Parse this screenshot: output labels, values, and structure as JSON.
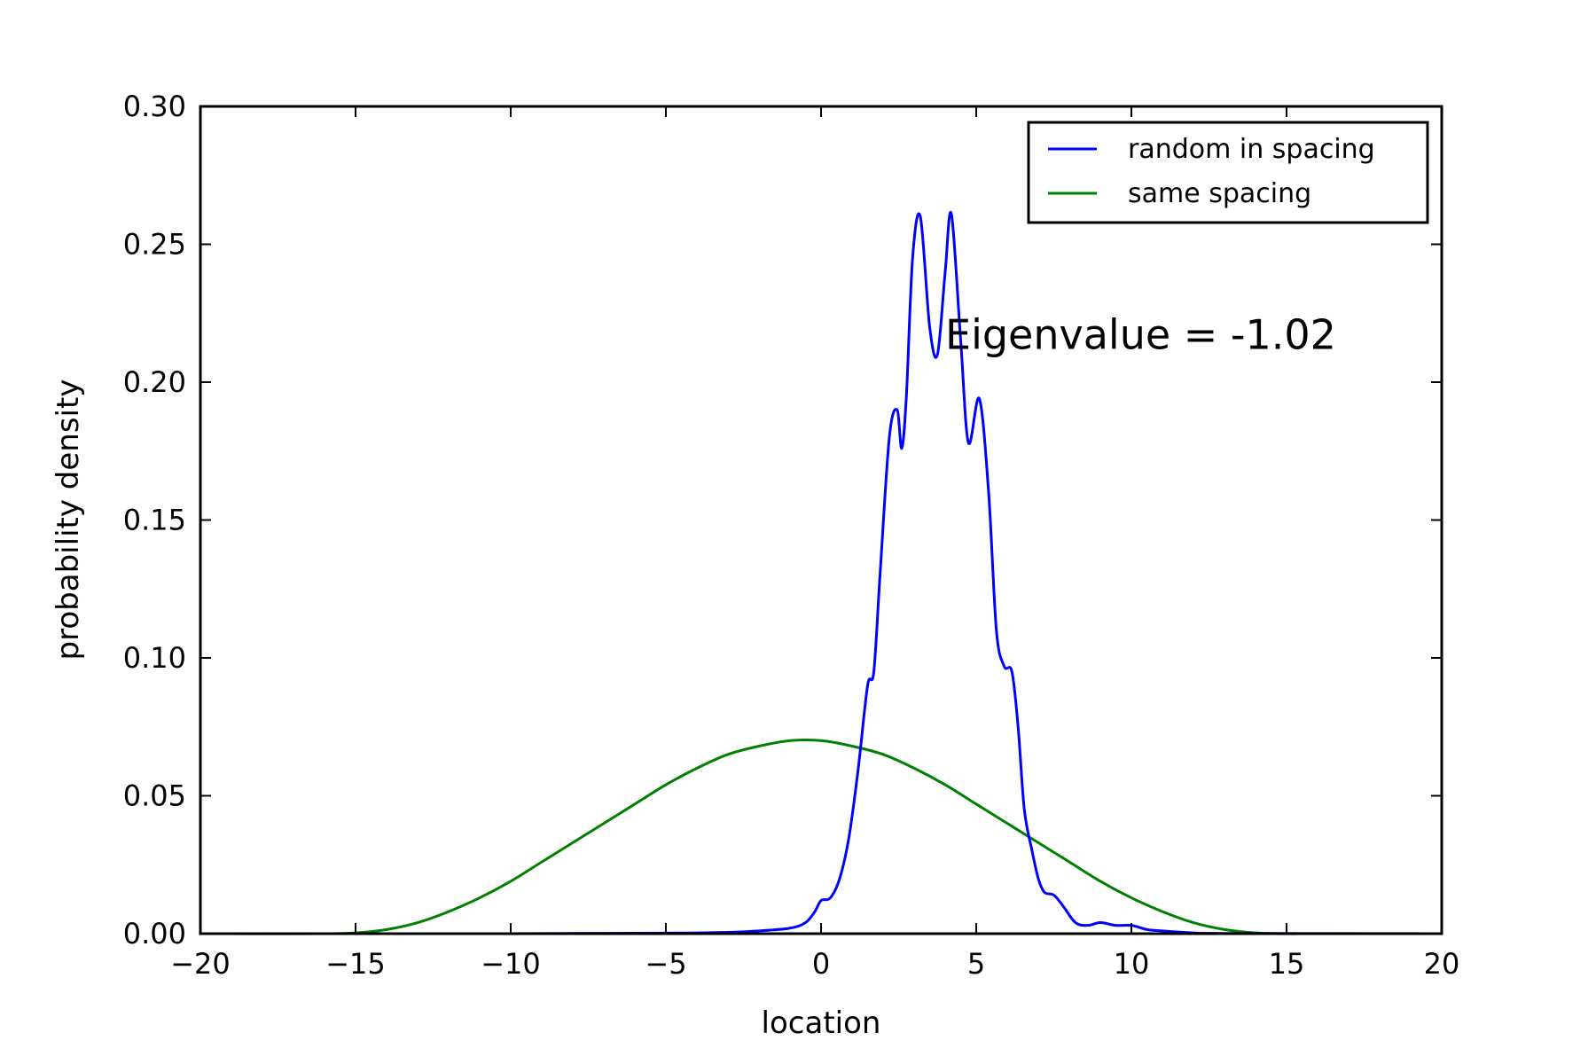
{
  "chart_data": {
    "type": "line",
    "title": "",
    "xlabel": "location",
    "ylabel": "probability density",
    "xlim": [
      -20,
      20
    ],
    "ylim": [
      0,
      0.3
    ],
    "xticks": [
      -20,
      -15,
      -10,
      -5,
      0,
      5,
      10,
      15,
      20
    ],
    "xtick_labels": [
      "−20",
      "−15",
      "−10",
      "−5",
      "0",
      "5",
      "10",
      "15",
      "20"
    ],
    "yticks": [
      0,
      0.05,
      0.1,
      0.15,
      0.2,
      0.25,
      0.3
    ],
    "ytick_labels": [
      "0.00",
      "0.05",
      "0.10",
      "0.15",
      "0.20",
      "0.25",
      "0.30"
    ],
    "grid": false,
    "legend_position": "top-right",
    "annotation": {
      "text": "Eigenvalue = -1.02",
      "x": 4.0,
      "y": 0.212
    },
    "series": [
      {
        "name": "random in spacing",
        "color": "#0000ff",
        "x": [
          -20,
          -10,
          -5,
          -3,
          -2,
          -1,
          -0.5,
          -0.2,
          0,
          0.3,
          0.6,
          0.9,
          1.2,
          1.5,
          1.7,
          1.9,
          2.2,
          2.45,
          2.6,
          2.75,
          2.95,
          3.2,
          3.5,
          3.75,
          4.0,
          4.2,
          4.5,
          4.75,
          5.1,
          5.4,
          5.65,
          5.9,
          6.15,
          6.35,
          6.55,
          6.8,
          7.0,
          7.2,
          7.5,
          7.8,
          8.2,
          8.6,
          9.0,
          9.5,
          10.0,
          10.5,
          11.0,
          12.0,
          13.0,
          20
        ],
        "y": [
          0.0,
          0.0,
          0.0002,
          0.0005,
          0.001,
          0.002,
          0.004,
          0.008,
          0.012,
          0.013,
          0.02,
          0.035,
          0.06,
          0.09,
          0.095,
          0.13,
          0.18,
          0.19,
          0.176,
          0.195,
          0.245,
          0.26,
          0.22,
          0.21,
          0.24,
          0.261,
          0.215,
          0.178,
          0.194,
          0.16,
          0.11,
          0.097,
          0.095,
          0.075,
          0.045,
          0.03,
          0.02,
          0.015,
          0.014,
          0.01,
          0.004,
          0.003,
          0.004,
          0.003,
          0.003,
          0.0015,
          0.001,
          0.0003,
          0.0001,
          0.0
        ]
      },
      {
        "name": "same spacing",
        "color": "#008000",
        "x": [
          -20,
          -16,
          -15,
          -14,
          -13,
          -12,
          -11,
          -10,
          -9,
          -8,
          -7,
          -6,
          -5,
          -4,
          -3,
          -2,
          -1,
          0,
          1,
          2,
          3,
          4,
          5,
          6,
          7,
          8,
          9,
          10,
          11,
          12,
          13,
          14,
          15,
          16,
          20
        ],
        "y": [
          0.0,
          0.0,
          0.0003,
          0.0015,
          0.004,
          0.008,
          0.013,
          0.019,
          0.026,
          0.033,
          0.04,
          0.047,
          0.054,
          0.06,
          0.065,
          0.068,
          0.07,
          0.07,
          0.068,
          0.065,
          0.06,
          0.054,
          0.047,
          0.04,
          0.033,
          0.026,
          0.019,
          0.013,
          0.008,
          0.004,
          0.0015,
          0.0003,
          0.0,
          0.0,
          0.0
        ]
      }
    ]
  }
}
